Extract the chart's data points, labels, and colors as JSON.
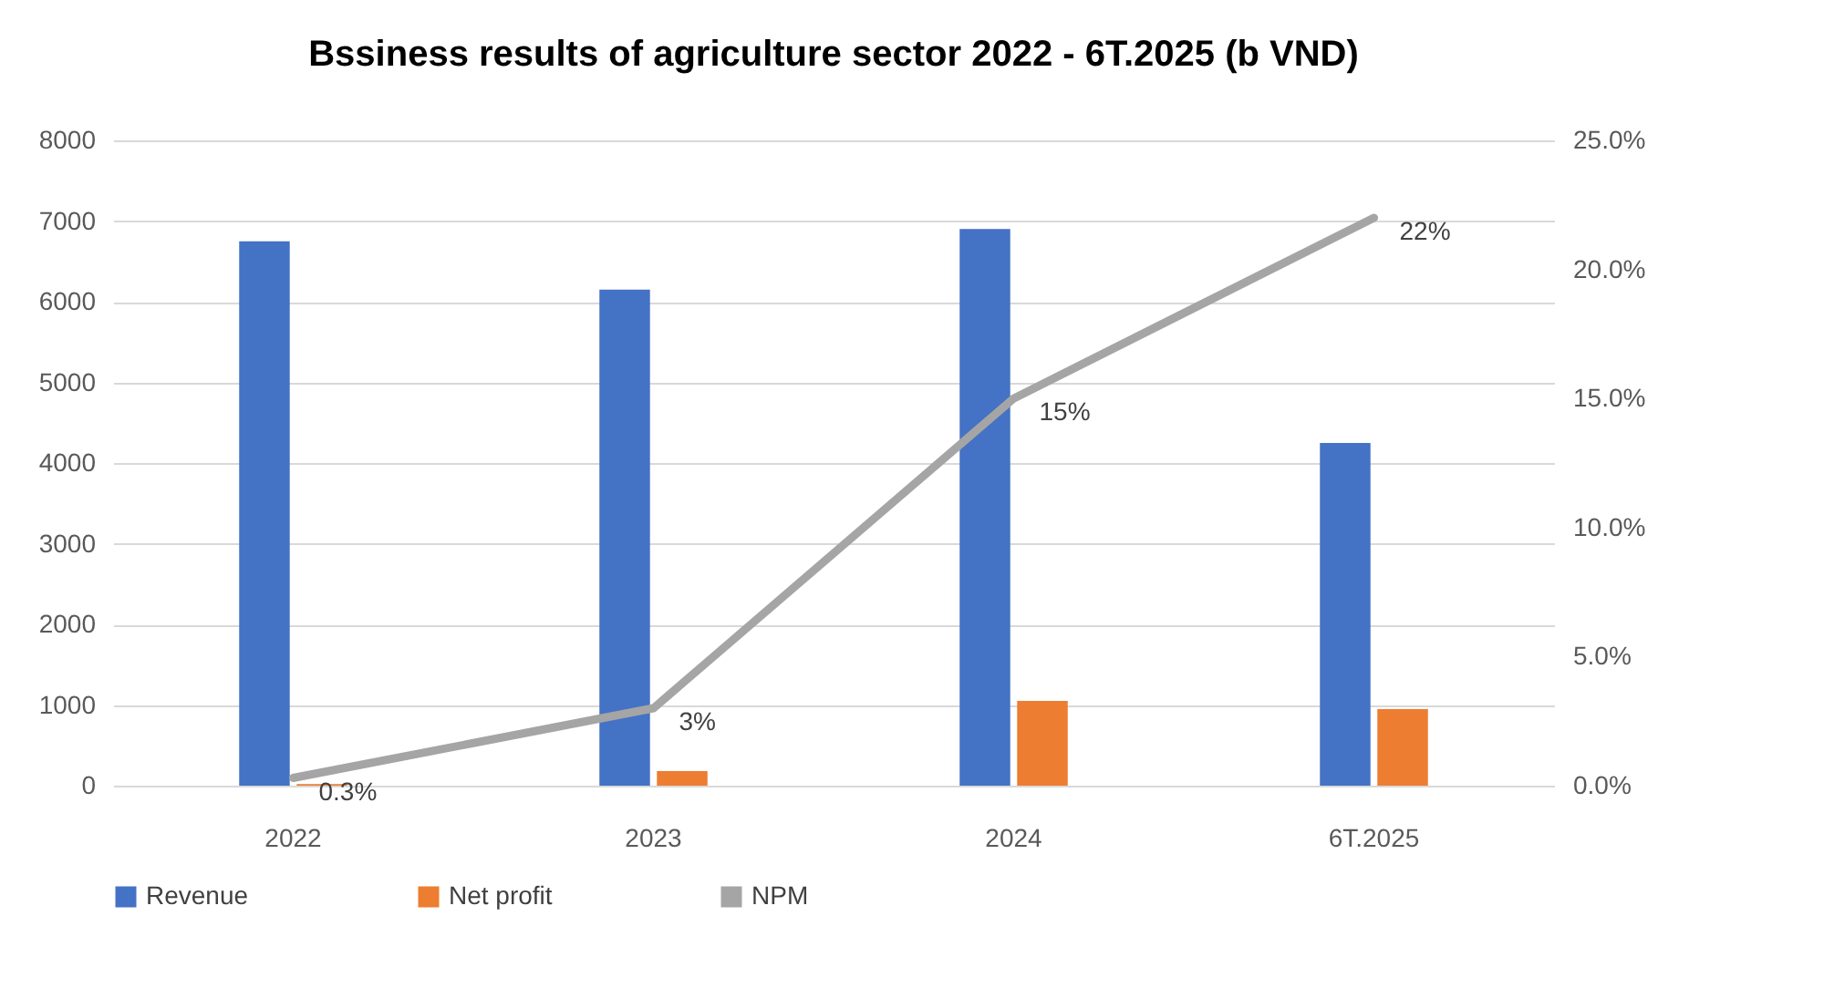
{
  "chart_data": {
    "type": "bar",
    "title": "Bssiness results of agriculture sector 2022 - 6T.2025 (b VND)",
    "categories": [
      "2022",
      "2023",
      "2024",
      "6T.2025"
    ],
    "series": [
      {
        "name": "Revenue",
        "color": "#4472c4",
        "values": [
          6750,
          6150,
          6900,
          4250
        ]
      },
      {
        "name": "Net profit",
        "color": "#ed7d31",
        "values": [
          20,
          180,
          1050,
          950
        ]
      },
      {
        "name": "NPM",
        "type": "line",
        "axis": "y2",
        "color": "#a5a5a5",
        "values": [
          0.3,
          3,
          15,
          22
        ],
        "value_labels": [
          "0.3%",
          "3%",
          "15%",
          "22%"
        ]
      }
    ],
    "ylim": [
      0,
      8000
    ],
    "yticks": [
      0,
      1000,
      2000,
      3000,
      4000,
      5000,
      6000,
      7000,
      8000
    ],
    "y2lim": [
      0,
      25
    ],
    "y2ticks": [
      {
        "value": 0,
        "label": "0.0%"
      },
      {
        "value": 5,
        "label": "5.0%"
      },
      {
        "value": 10,
        "label": "10.0%"
      },
      {
        "value": 15,
        "label": "15.0%"
      },
      {
        "value": 20,
        "label": "20.0%"
      },
      {
        "value": 25,
        "label": "25.0%"
      }
    ],
    "grid": "y",
    "legend": "bottom",
    "marker": "none",
    "line_style": "solid"
  }
}
